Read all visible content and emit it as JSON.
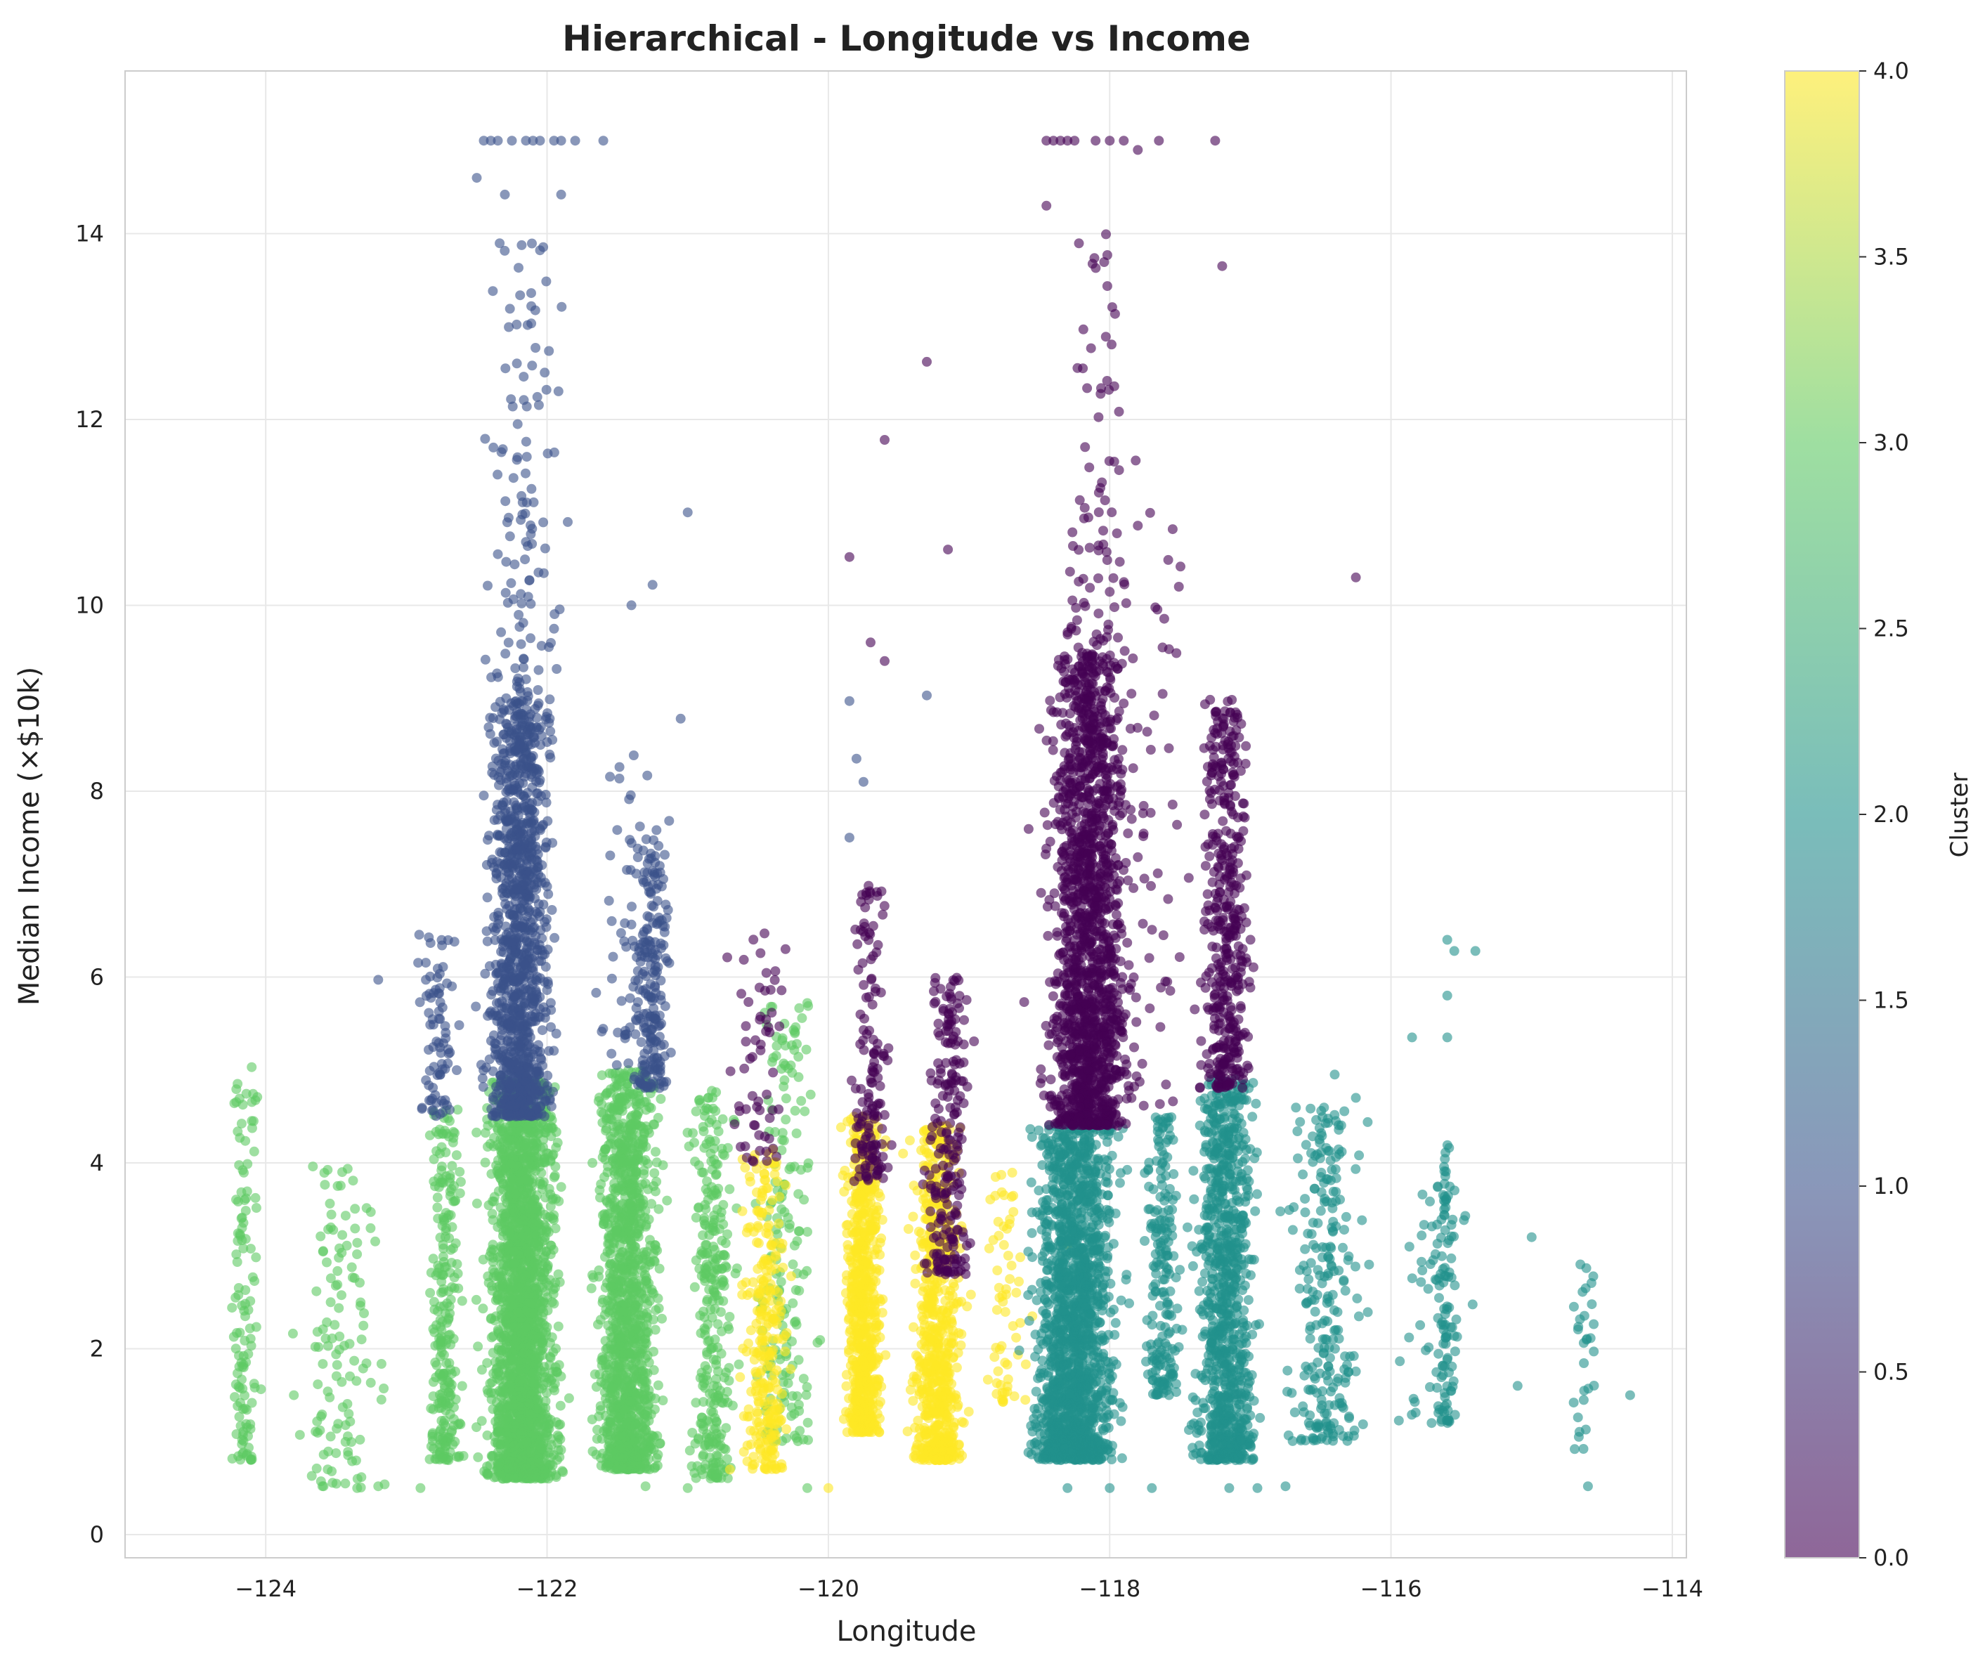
{
  "chart_data": {
    "type": "scatter",
    "title": "Hierarchical - Longitude vs Income",
    "xlabel": "Longitude",
    "ylabel": "Median Income (×$10k)",
    "xlim": [
      -125.0,
      -113.9
    ],
    "ylim": [
      -0.25,
      15.75
    ],
    "xticks": [
      -124,
      -122,
      -120,
      -118,
      -116,
      -114
    ],
    "xtick_labels": [
      "−124",
      "−122",
      "−120",
      "−118",
      "−116",
      "−114"
    ],
    "yticks": [
      0,
      2,
      4,
      6,
      8,
      10,
      12,
      14
    ],
    "ytick_labels": [
      "0",
      "2",
      "4",
      "6",
      "8",
      "10",
      "12",
      "14"
    ],
    "grid": true,
    "point_alpha": 0.6,
    "colorbar": {
      "label": "Cluster",
      "range": [
        0.0,
        4.0
      ],
      "ticks": [
        0.0,
        0.5,
        1.0,
        1.5,
        2.0,
        2.5,
        3.0,
        3.5,
        4.0
      ],
      "tick_labels": [
        "0.0",
        "0.5",
        "1.0",
        "1.5",
        "2.0",
        "2.5",
        "3.0",
        "3.5",
        "4.0"
      ],
      "colormap": "viridis",
      "colormap_stops": [
        "#440154",
        "#3b528b",
        "#21918c",
        "#5ec962",
        "#fde725"
      ]
    },
    "series": [
      {
        "cluster": 0,
        "color": "#440154",
        "groups": [
          {
            "x": [
              -118.55,
              -117.75
            ],
            "y": [
              4.4,
              9.5
            ],
            "n": 1500
          },
          {
            "x": [
              -118.5,
              -117.7
            ],
            "y": [
              9.5,
              14.0
            ],
            "n": 70
          },
          {
            "x": [
              -117.45,
              -116.9
            ],
            "y": [
              4.8,
              9.0
            ],
            "n": 420
          },
          {
            "x": [
              -119.9,
              -119.5
            ],
            "y": [
              3.8,
              7.0
            ],
            "n": 150
          },
          {
            "x": [
              -119.4,
              -118.9
            ],
            "y": [
              2.8,
              6.0
            ],
            "n": 220
          },
          {
            "x": [
              -120.8,
              -120.2
            ],
            "y": [
              4.0,
              6.5
            ],
            "n": 60
          },
          {
            "x": [
              -118.9,
              -117.0
            ],
            "y": [
              4.6,
              11.0
            ],
            "n": 160
          }
        ],
        "points": [
          {
            "x": -118.45,
            "y": 15.0
          },
          {
            "x": -118.4,
            "y": 15.0
          },
          {
            "x": -118.35,
            "y": 15.0
          },
          {
            "x": -118.3,
            "y": 15.0
          },
          {
            "x": -118.25,
            "y": 15.0
          },
          {
            "x": -118.1,
            "y": 15.0
          },
          {
            "x": -118.0,
            "y": 15.0
          },
          {
            "x": -117.9,
            "y": 15.0
          },
          {
            "x": -117.65,
            "y": 15.0
          },
          {
            "x": -117.25,
            "y": 15.0
          },
          {
            "x": -117.8,
            "y": 14.9
          },
          {
            "x": -118.45,
            "y": 14.3
          },
          {
            "x": -117.2,
            "y": 13.65
          },
          {
            "x": -119.3,
            "y": 12.62
          },
          {
            "x": -119.6,
            "y": 11.78
          },
          {
            "x": -116.25,
            "y": 10.3
          },
          {
            "x": -119.85,
            "y": 10.52
          },
          {
            "x": -119.15,
            "y": 10.6
          },
          {
            "x": -119.7,
            "y": 9.6
          },
          {
            "x": -119.6,
            "y": 9.4
          }
        ]
      },
      {
        "cluster": 1,
        "color": "#3b528b",
        "groups": [
          {
            "x": [
              -122.55,
              -121.85
            ],
            "y": [
              4.5,
              9.0
            ],
            "n": 1200
          },
          {
            "x": [
              -122.6,
              -121.75
            ],
            "y": [
              9.0,
              14.0
            ],
            "n": 120
          },
          {
            "x": [
              -121.5,
              -121.05
            ],
            "y": [
              4.8,
              7.5
            ],
            "n": 200
          },
          {
            "x": [
              -123.0,
              -122.55
            ],
            "y": [
              4.5,
              6.5
            ],
            "n": 80
          },
          {
            "x": [
              -121.9,
              -120.9
            ],
            "y": [
              5.0,
              8.5
            ],
            "n": 60
          }
        ],
        "points": [
          {
            "x": -122.45,
            "y": 15.0
          },
          {
            "x": -122.4,
            "y": 15.0
          },
          {
            "x": -122.35,
            "y": 15.0
          },
          {
            "x": -122.25,
            "y": 15.0
          },
          {
            "x": -122.15,
            "y": 15.0
          },
          {
            "x": -122.1,
            "y": 15.0
          },
          {
            "x": -122.05,
            "y": 15.0
          },
          {
            "x": -121.95,
            "y": 15.0
          },
          {
            "x": -121.9,
            "y": 15.0
          },
          {
            "x": -121.8,
            "y": 15.0
          },
          {
            "x": -121.6,
            "y": 15.0
          },
          {
            "x": -122.5,
            "y": 14.6
          },
          {
            "x": -122.3,
            "y": 14.42
          },
          {
            "x": -121.9,
            "y": 14.42
          },
          {
            "x": -122.05,
            "y": 13.82
          },
          {
            "x": -121.0,
            "y": 11.0
          },
          {
            "x": -121.25,
            "y": 10.22
          },
          {
            "x": -121.4,
            "y": 10.0
          },
          {
            "x": -121.05,
            "y": 8.78
          },
          {
            "x": -123.2,
            "y": 5.97
          },
          {
            "x": -119.85,
            "y": 8.97
          },
          {
            "x": -119.8,
            "y": 8.35
          },
          {
            "x": -119.75,
            "y": 8.1
          },
          {
            "x": -119.85,
            "y": 7.5
          },
          {
            "x": -119.3,
            "y": 9.03
          }
        ]
      },
      {
        "cluster": 2,
        "color": "#21918c",
        "groups": [
          {
            "x": [
              -118.7,
              -117.8
            ],
            "y": [
              0.8,
              4.4
            ],
            "n": 1600
          },
          {
            "x": [
              -117.5,
              -116.85
            ],
            "y": [
              0.8,
              4.9
            ],
            "n": 900
          },
          {
            "x": [
              -117.8,
              -117.45
            ],
            "y": [
              1.5,
              4.5
            ],
            "n": 200
          },
          {
            "x": [
              -116.9,
              -116.05
            ],
            "y": [
              1.0,
              4.6
            ],
            "n": 250
          },
          {
            "x": [
              -115.7,
              -115.5
            ],
            "y": [
              1.2,
              4.5
            ],
            "n": 90
          },
          {
            "x": [
              -116.1,
              -115.3
            ],
            "y": [
              1.2,
              3.8
            ],
            "n": 50
          },
          {
            "x": [
              -114.75,
              -114.5
            ],
            "y": [
              0.8,
              3.3
            ],
            "n": 30
          }
        ],
        "points": [
          {
            "x": -115.6,
            "y": 6.4
          },
          {
            "x": -115.55,
            "y": 6.28
          },
          {
            "x": -115.4,
            "y": 6.28
          },
          {
            "x": -115.6,
            "y": 5.8
          },
          {
            "x": -115.85,
            "y": 5.35
          },
          {
            "x": -115.6,
            "y": 5.35
          },
          {
            "x": -115.0,
            "y": 3.2
          },
          {
            "x": -114.3,
            "y": 1.5
          },
          {
            "x": -114.6,
            "y": 0.52
          },
          {
            "x": -116.4,
            "y": 4.95
          },
          {
            "x": -116.25,
            "y": 4.7
          },
          {
            "x": -118.3,
            "y": 0.5
          },
          {
            "x": -118.0,
            "y": 0.5
          },
          {
            "x": -117.7,
            "y": 0.5
          },
          {
            "x": -117.15,
            "y": 0.5
          },
          {
            "x": -116.95,
            "y": 0.5
          },
          {
            "x": -116.75,
            "y": 0.52
          },
          {
            "x": -115.1,
            "y": 1.6
          }
        ]
      },
      {
        "cluster": 3,
        "color": "#5ec962",
        "groups": [
          {
            "x": [
              -122.55,
              -121.8
            ],
            "y": [
              0.6,
              4.9
            ],
            "n": 2200
          },
          {
            "x": [
              -121.75,
              -121.1
            ],
            "y": [
              0.7,
              5.0
            ],
            "n": 1300
          },
          {
            "x": [
              -122.9,
              -122.55
            ],
            "y": [
              0.8,
              4.6
            ],
            "n": 250
          },
          {
            "x": -121.05,
            "y": [
              0.6,
              4.8
            ],
            "x2": -120.6,
            "n": 300
          },
          {
            "x": [
              -124.3,
              -124.0
            ],
            "y": [
              0.8,
              4.8
            ],
            "n": 120
          },
          {
            "x": [
              -123.9,
              -123.0
            ],
            "y": [
              0.5,
              4.0
            ],
            "n": 120
          },
          {
            "x": [
              -120.6,
              -120.0
            ],
            "y": [
              1.0,
              5.7
            ],
            "n": 180
          }
        ],
        "points": [
          {
            "x": -124.1,
            "y": 5.03
          },
          {
            "x": -124.2,
            "y": 4.85
          },
          {
            "x": -123.2,
            "y": 0.52
          },
          {
            "x": -123.35,
            "y": 0.5
          },
          {
            "x": -122.9,
            "y": 0.5
          },
          {
            "x": -121.3,
            "y": 0.52
          },
          {
            "x": -121.0,
            "y": 0.5
          },
          {
            "x": -120.15,
            "y": 0.5
          },
          {
            "x": -120.15,
            "y": 5.72
          },
          {
            "x": -123.8,
            "y": 1.5
          }
        ]
      },
      {
        "cluster": 4,
        "color": "#fde725",
        "groups": [
          {
            "x": [
              -119.95,
              -119.55
            ],
            "y": [
              1.1,
              4.5
            ],
            "n": 750
          },
          {
            "x": [
              -119.5,
              -118.95
            ],
            "y": [
              0.8,
              4.4
            ],
            "n": 700
          },
          {
            "x": [
              -120.7,
              -120.2
            ],
            "y": [
              0.7,
              4.2
            ],
            "n": 280
          },
          {
            "x": [
              -118.95,
              -118.55
            ],
            "y": [
              1.4,
              3.9
            ],
            "n": 60
          }
        ],
        "points": [
          {
            "x": -120.7,
            "y": 0.7
          },
          {
            "x": -120.0,
            "y": 0.5
          },
          {
            "x": -118.3,
            "y": 3.12
          },
          {
            "x": -118.55,
            "y": 2.35
          },
          {
            "x": -118.6,
            "y": 1.45
          }
        ]
      }
    ]
  }
}
